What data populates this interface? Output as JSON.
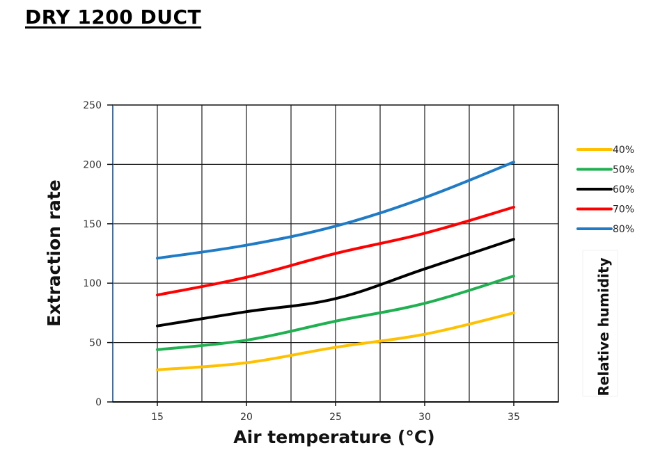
{
  "page": {
    "title": "DRY 1200 DUCT"
  },
  "chart_data": {
    "type": "line",
    "title": "DRY 1200 DUCT",
    "xlabel": "Air temperature (°C)",
    "ylabel": "Extraction rate",
    "legend_title": "Relative humidity",
    "legend_position": "right",
    "grid": true,
    "x": [
      15,
      20,
      25,
      30,
      35
    ],
    "x_ticks": [
      15,
      20,
      25,
      30,
      35
    ],
    "xlim": [
      12.5,
      37.5
    ],
    "y_ticks": [
      0,
      50,
      100,
      150,
      200,
      250
    ],
    "ylim": [
      0,
      250
    ],
    "series": [
      {
        "name": "40%",
        "color": "#ffc000",
        "values": [
          27,
          33,
          46,
          57,
          75
        ]
      },
      {
        "name": "50%",
        "color": "#1fb050",
        "values": [
          44,
          52,
          68,
          83,
          106
        ]
      },
      {
        "name": "60%",
        "color": "#000000",
        "values": [
          64,
          76,
          87,
          112,
          137
        ]
      },
      {
        "name": "70%",
        "color": "#ff0000",
        "values": [
          90,
          105,
          125,
          142,
          164
        ]
      },
      {
        "name": "80%",
        "color": "#1f7bc6",
        "values": [
          121,
          132,
          148,
          172,
          202
        ]
      }
    ]
  }
}
